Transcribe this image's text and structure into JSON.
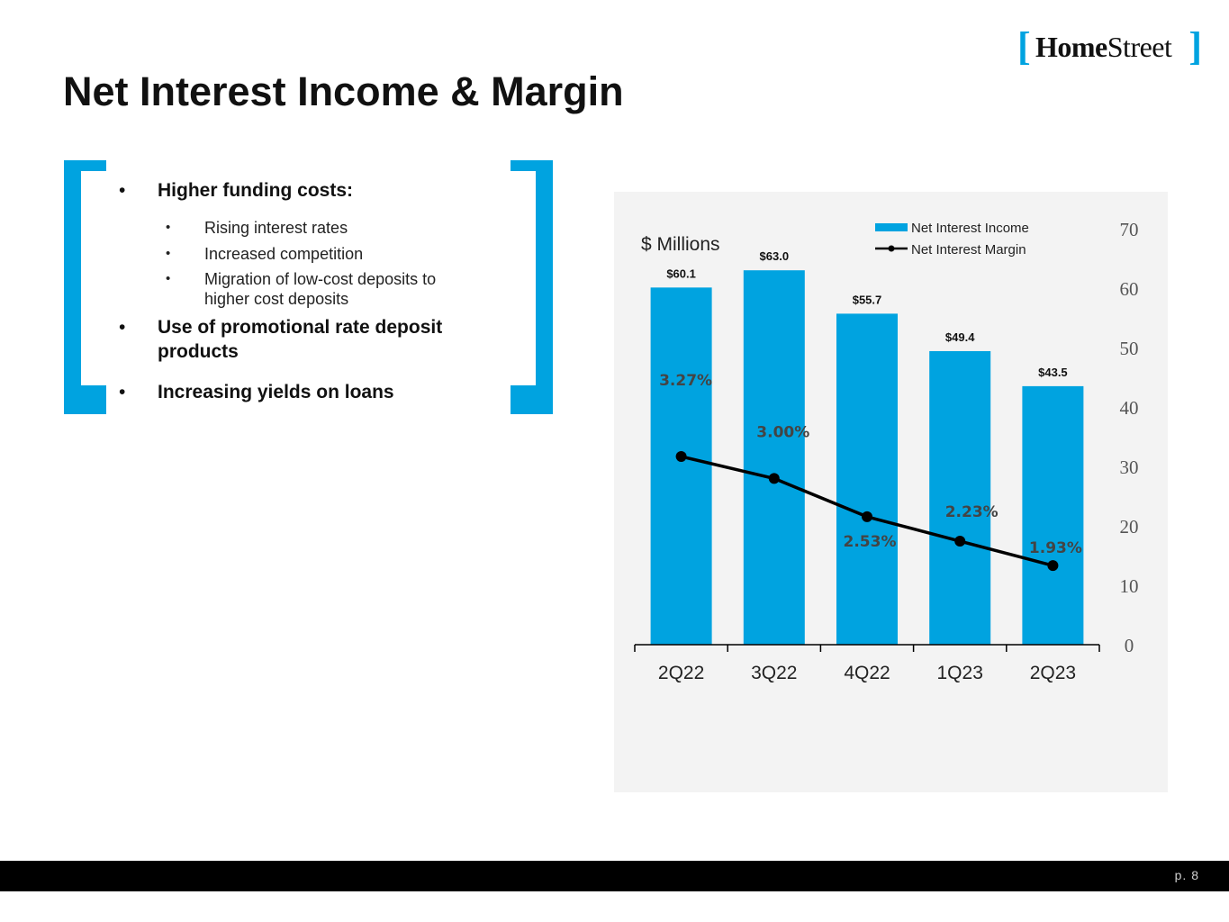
{
  "logo": {
    "bracket_open": "[",
    "name_bold": "Home",
    "name_rest": "Street",
    "bracket_close": "]"
  },
  "page": {
    "title": "Net Interest Income & Margin",
    "page_number": "p. 8"
  },
  "bullets": {
    "items": [
      {
        "text": "Higher funding costs:",
        "sub": [
          "Rising interest rates",
          "Increased competition",
          "Migration of low-cost deposits to higher cost deposits"
        ]
      },
      {
        "text": "Use of promotional rate deposit products"
      },
      {
        "text": "Increasing yields on loans"
      }
    ]
  },
  "colors": {
    "accent": "#00a3e0",
    "line": "#000000",
    "panel": "#f3f3f3"
  },
  "chart_data": {
    "type": "bar",
    "unit_label": "$ Millions",
    "categories": [
      "2Q22",
      "3Q22",
      "4Q22",
      "1Q23",
      "2Q23"
    ],
    "series": [
      {
        "name": "Net Interest Income",
        "type": "bar",
        "values": [
          60.1,
          63.0,
          55.7,
          49.4,
          43.5
        ],
        "labels": [
          "$60.1",
          "$63.0",
          "$55.7",
          "$49.4",
          "$43.5"
        ]
      },
      {
        "name": "Net Interest Margin",
        "type": "line",
        "values": [
          3.27,
          3.0,
          2.53,
          2.23,
          1.93
        ],
        "labels": [
          "3.27%",
          "3.00%",
          "2.53%",
          "2.23%",
          "1.93%"
        ]
      }
    ],
    "y_axis": {
      "position": "right",
      "ylim": [
        0,
        70
      ],
      "ticks": [
        0,
        10,
        20,
        30,
        40,
        50,
        60,
        70
      ]
    },
    "legend": "top-right",
    "grid": false
  }
}
